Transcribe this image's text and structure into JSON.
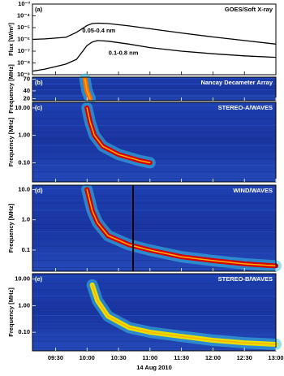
{
  "chart_data": [
    {
      "type": "line",
      "title": "GOES/Soft X-ray",
      "panel_label": "(a)",
      "ylabel": "Flux [W/m²]",
      "log_y": true,
      "xlim": [
        "09:08",
        "13:00"
      ],
      "ylim": [
        1e-09,
        0.001
      ],
      "yticks": [
        {
          "value": 1e-09,
          "label": "10⁻⁹"
        },
        {
          "value": 1e-08,
          "label": "10⁻⁸"
        },
        {
          "value": 1e-07,
          "label": "10⁻⁷"
        },
        {
          "value": 1e-06,
          "label": "10⁻⁶"
        },
        {
          "value": 1e-05,
          "label": "10⁻⁵"
        },
        {
          "value": 0.0001,
          "label": "10⁻⁴"
        },
        {
          "value": 0.001,
          "label": "10⁻³"
        }
      ],
      "x": [
        "09:08",
        "09:20",
        "09:40",
        "09:50",
        "10:00",
        "10:05",
        "10:10",
        "10:20",
        "10:40",
        "11:00",
        "11:30",
        "12:00",
        "12:30",
        "13:00"
      ],
      "series": [
        {
          "name": "0.05-0.4 nm",
          "color": "#000000",
          "values": [
            1e-06,
            1.1e-06,
            1.5e-06,
            4e-06,
            1.5e-05,
            2.2e-05,
            2.4e-05,
            2.2e-05,
            1.4e-05,
            8e-06,
            3.5e-06,
            1.6e-06,
            8e-07,
            4e-07
          ]
        },
        {
          "name": "0.1-0.8 nm",
          "color": "#000000",
          "values": [
            2e-09,
            3e-09,
            8e-09,
            2e-08,
            3e-07,
            6e-07,
            8e-07,
            7e-07,
            4e-07,
            2e-07,
            1e-07,
            6e-08,
            4e-08,
            3e-08
          ]
        }
      ]
    },
    {
      "type": "spectrogram",
      "title": "Nancay Decameter Array",
      "panel_label": "(b)",
      "ylabel": "Frequency [MHz]",
      "log_y": false,
      "xlim": [
        "09:08",
        "13:00"
      ],
      "ylim": [
        15,
        75
      ],
      "yticks": [
        20,
        40,
        70
      ],
      "x": [
        "09:58",
        "10:00",
        "10:03"
      ],
      "series": [
        {
          "color": "#ff6a00",
          "values": [
            70,
            40,
            20
          ]
        }
      ]
    },
    {
      "type": "spectrogram",
      "title": "STEREO-A/WAVES",
      "panel_label": "(c)",
      "ylabel": "Frequency [MHz]",
      "log_y": true,
      "xlim": [
        "09:08",
        "13:00"
      ],
      "ylim": [
        0.02,
        16
      ],
      "yticks": [
        {
          "value": 10,
          "label": "10.00"
        },
        {
          "value": 1,
          "label": "1.00"
        },
        {
          "value": 0.1,
          "label": "0.10"
        }
      ],
      "x": [
        "10:00",
        "10:03",
        "10:07",
        "10:15",
        "10:30",
        "10:50",
        "11:00"
      ],
      "series": [
        {
          "color": "#d40000",
          "values": [
            10,
            3,
            1,
            0.4,
            0.2,
            0.12,
            0.1
          ]
        }
      ]
    },
    {
      "type": "spectrogram",
      "title": "WIND/WAVES",
      "panel_label": "(d)",
      "ylabel": "Frequency [MHz]",
      "log_y": true,
      "xlim": [
        "09:08",
        "13:00"
      ],
      "ylim": [
        0.02,
        14
      ],
      "yticks": [
        {
          "value": 10,
          "label": "10.0"
        },
        {
          "value": 1,
          "label": "1.0"
        },
        {
          "value": 0.1,
          "label": "0.1"
        }
      ],
      "x": [
        "10:00",
        "10:05",
        "10:10",
        "10:20",
        "10:40",
        "11:00",
        "11:30",
        "12:00",
        "12:30",
        "13:00"
      ],
      "series": [
        {
          "color": "#d40000",
          "values": [
            10,
            2,
            0.8,
            0.3,
            0.15,
            0.1,
            0.06,
            0.045,
            0.035,
            0.03
          ]
        }
      ]
    },
    {
      "type": "spectrogram",
      "title": "STEREO-B/WAVES",
      "panel_label": "(e)",
      "ylabel": "Frequency [MHz]",
      "log_y": true,
      "xlim": [
        "09:08",
        "13:00"
      ],
      "ylim": [
        0.02,
        16
      ],
      "yticks": [
        {
          "value": 10,
          "label": "10.00"
        },
        {
          "value": 1,
          "label": "1.00"
        },
        {
          "value": 0.1,
          "label": "0.10"
        }
      ],
      "x": [
        "10:05",
        "10:10",
        "10:20",
        "10:40",
        "11:00",
        "11:30",
        "12:00",
        "12:30",
        "13:00"
      ],
      "series": [
        {
          "color": "#e8e000",
          "values": [
            6,
            1.5,
            0.4,
            0.15,
            0.1,
            0.07,
            0.05,
            0.04,
            0.035
          ]
        }
      ],
      "xticks": [
        "09:30",
        "10:00",
        "10:30",
        "11:00",
        "11:30",
        "12:00",
        "12:30",
        "13:00"
      ],
      "xlabel": "14 Aug 2010"
    }
  ]
}
